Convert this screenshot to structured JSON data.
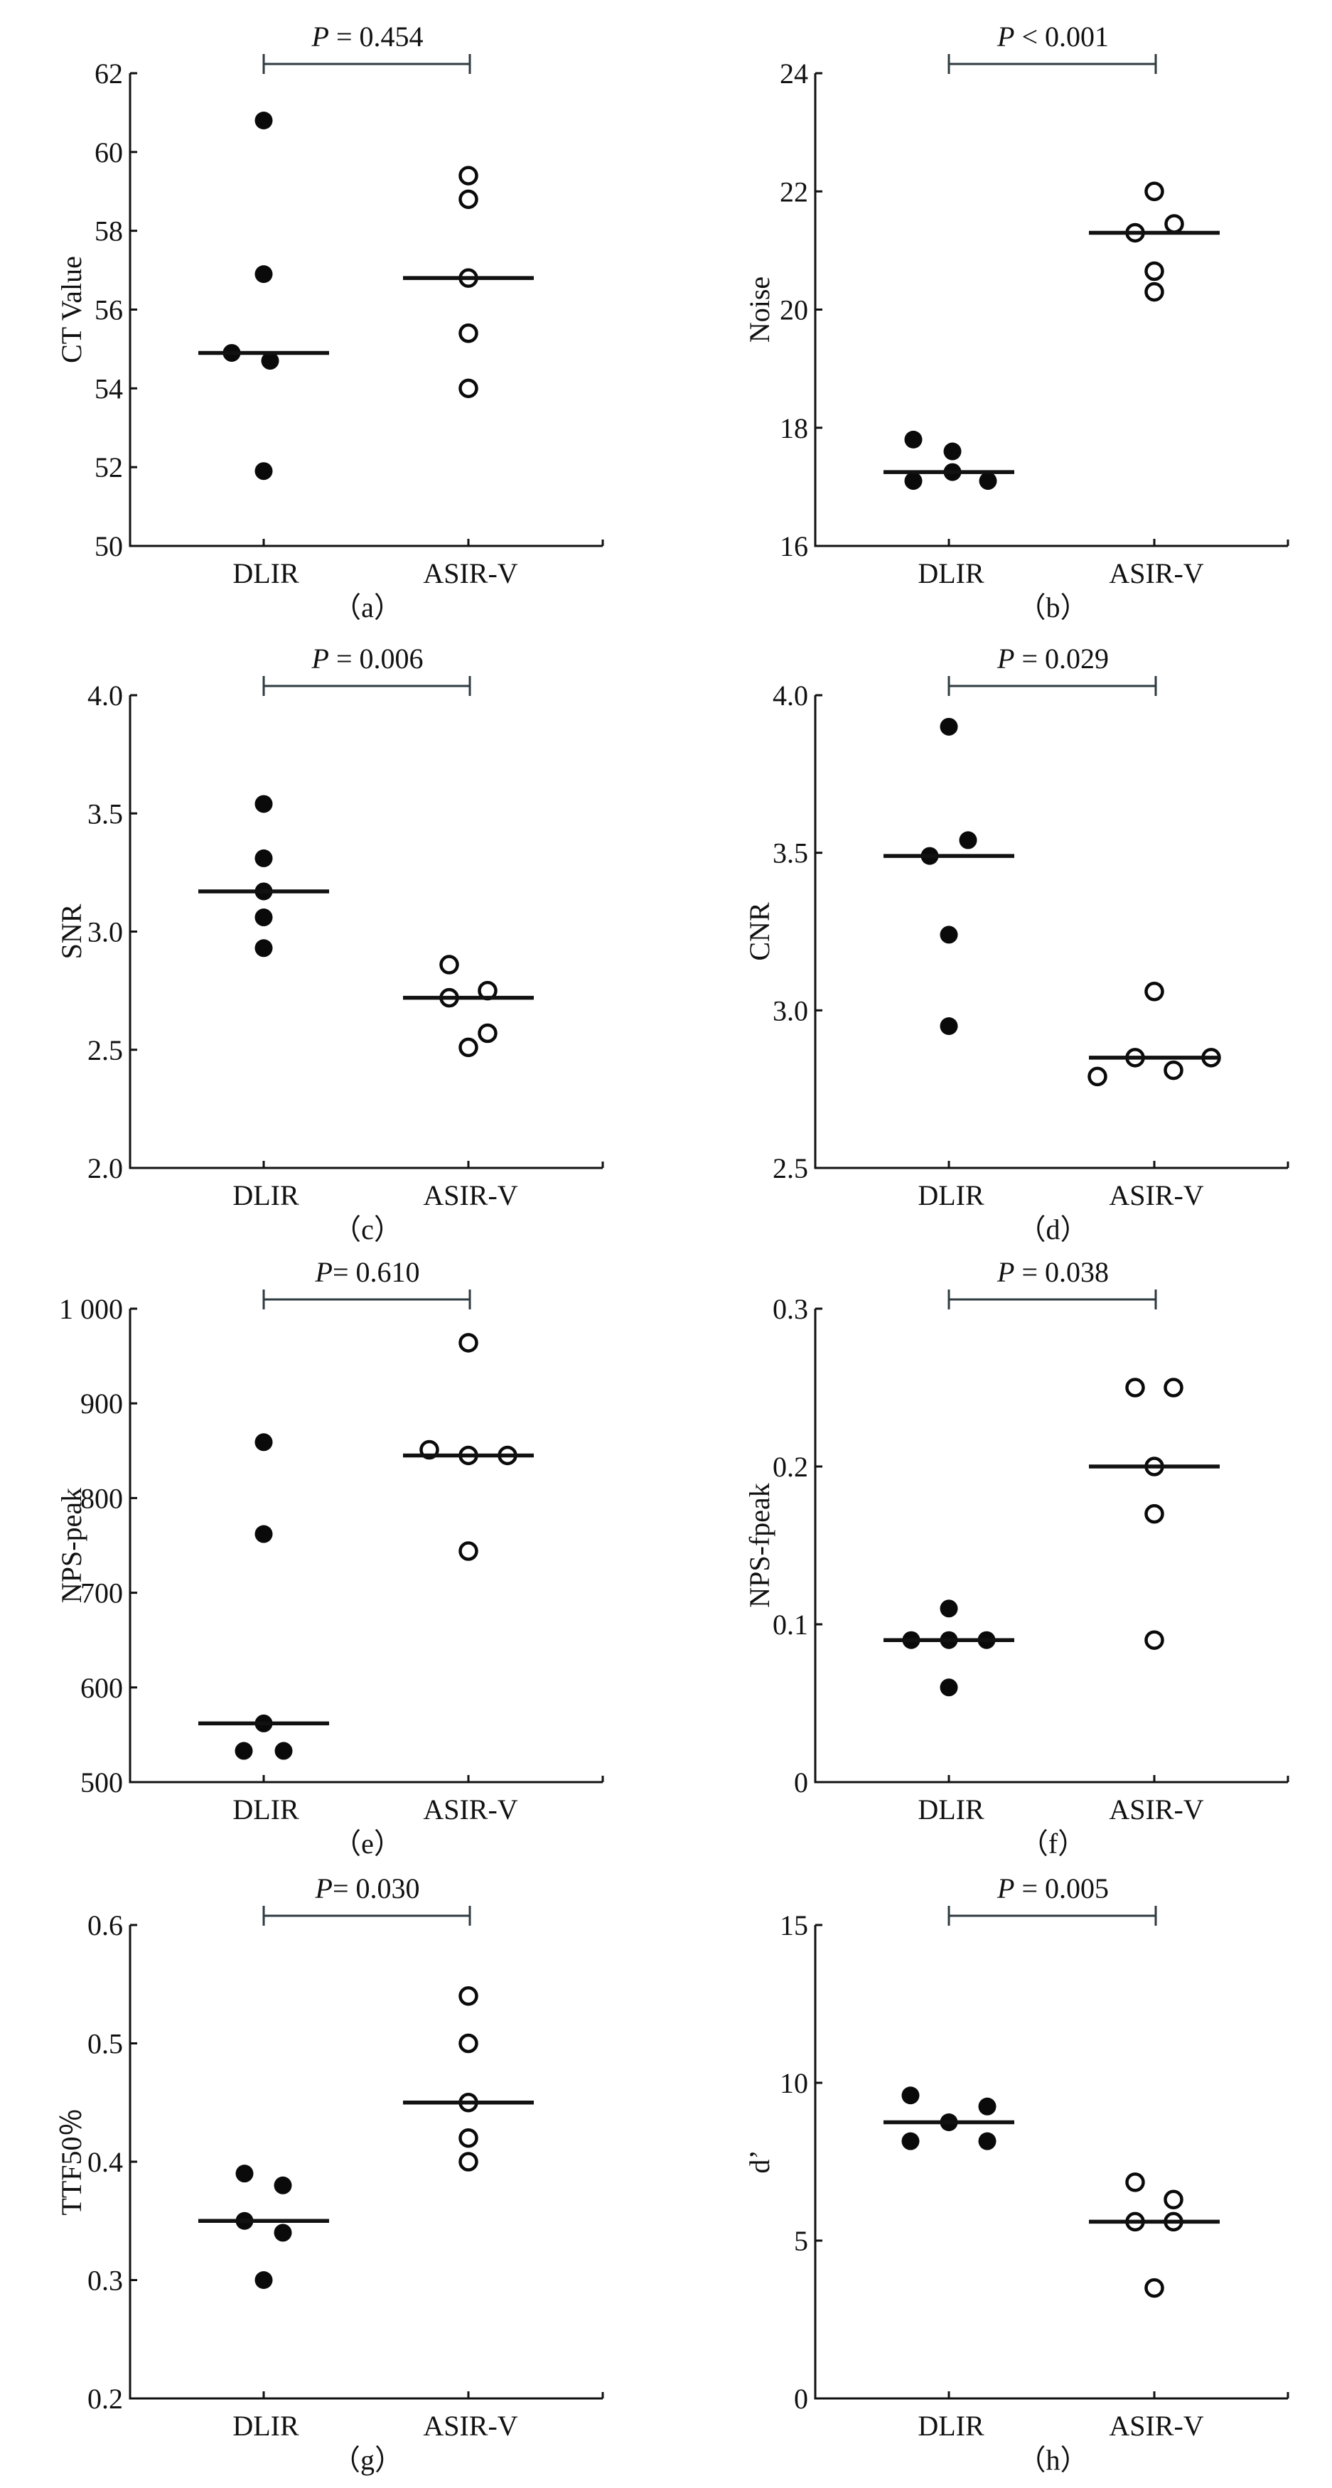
{
  "colors": {
    "axis": "#111111",
    "marker": "#0a0a0a",
    "median": "#111111",
    "bracket": "#2f3b40",
    "background": "#ffffff"
  },
  "chart_data": [
    {
      "type": "scatter",
      "panel": "a",
      "caption": "（a）",
      "ylabel": "CT Value",
      "xlabel": "",
      "categories": [
        "DLIR",
        "ASIR-V"
      ],
      "ylim": [
        50,
        62
      ],
      "yticks": [
        50,
        52,
        54,
        56,
        58,
        60,
        62
      ],
      "ytick_labels": [
        "50",
        "52",
        "54",
        "56",
        "58",
        "60",
        "62"
      ],
      "p_prefix": "P",
      "p_text": " = 0.454",
      "series": [
        {
          "name": "DLIR",
          "marker": "filled",
          "values": [
            60.8,
            56.9,
            54.9,
            54.7,
            51.9
          ],
          "median": 54.9
        },
        {
          "name": "ASIR-V",
          "marker": "open",
          "values": [
            59.4,
            58.8,
            56.8,
            55.4,
            54.0
          ],
          "median": 56.8
        }
      ],
      "grid": false
    },
    {
      "type": "scatter",
      "panel": "b",
      "caption": "（b）",
      "ylabel": "Noise",
      "xlabel": "",
      "categories": [
        "DLIR",
        "ASIR-V"
      ],
      "ylim": [
        16,
        24
      ],
      "yticks": [
        16,
        18,
        20,
        22,
        24
      ],
      "ytick_labels": [
        "16",
        "18",
        "20",
        "22",
        "24"
      ],
      "p_prefix": "P",
      "p_text": " < 0.001",
      "series": [
        {
          "name": "DLIR",
          "marker": "filled",
          "values": [
            17.8,
            17.6,
            17.25,
            17.1,
            17.1
          ],
          "median": 17.25
        },
        {
          "name": "ASIR-V",
          "marker": "open",
          "values": [
            22.0,
            21.45,
            21.3,
            20.65,
            20.3
          ],
          "median": 21.3
        }
      ],
      "grid": false
    },
    {
      "type": "scatter",
      "panel": "c",
      "caption": "（c）",
      "ylabel": "SNR",
      "xlabel": "",
      "categories": [
        "DLIR",
        "ASIR-V"
      ],
      "ylim": [
        2.0,
        4.0
      ],
      "yticks": [
        2.0,
        2.5,
        3.0,
        3.5,
        4.0
      ],
      "ytick_labels": [
        "2.0",
        "2.5",
        "3.0",
        "3.5",
        "4.0"
      ],
      "p_prefix": "P",
      "p_text": " = 0.006",
      "series": [
        {
          "name": "DLIR",
          "marker": "filled",
          "values": [
            3.54,
            3.31,
            3.17,
            3.06,
            2.93
          ],
          "median": 3.17
        },
        {
          "name": "ASIR-V",
          "marker": "open",
          "values": [
            2.86,
            2.75,
            2.72,
            2.57,
            2.51
          ],
          "median": 2.72
        }
      ],
      "grid": false
    },
    {
      "type": "scatter",
      "panel": "d",
      "caption": "（d）",
      "ylabel": "CNR",
      "xlabel": "",
      "categories": [
        "DLIR",
        "ASIR-V"
      ],
      "ylim": [
        2.5,
        4.0
      ],
      "yticks": [
        2.5,
        3.0,
        3.5,
        4.0
      ],
      "ytick_labels": [
        "2.5",
        "3.0",
        "3.5",
        "4.0"
      ],
      "p_prefix": "P",
      "p_text": " = 0.029",
      "series": [
        {
          "name": "DLIR",
          "marker": "filled",
          "values": [
            3.9,
            3.54,
            3.49,
            3.24,
            2.95
          ],
          "median": 3.49
        },
        {
          "name": "ASIR-V",
          "marker": "open",
          "values": [
            3.06,
            2.85,
            2.85,
            2.81,
            2.79
          ],
          "median": 2.85
        }
      ],
      "grid": false
    },
    {
      "type": "scatter",
      "panel": "e",
      "caption": "（e）",
      "ylabel": "NPS-peak",
      "xlabel": "",
      "categories": [
        "DLIR",
        "ASIR-V"
      ],
      "ylim": [
        500,
        1000
      ],
      "yticks": [
        500,
        600,
        700,
        800,
        900,
        1000
      ],
      "ytick_labels": [
        "500",
        "600",
        "700",
        "800",
        "900",
        "1 000"
      ],
      "p_prefix": "P",
      "p_text": "= 0.610",
      "series": [
        {
          "name": "DLIR",
          "marker": "filled",
          "values": [
            859,
            762,
            562,
            533,
            533
          ],
          "median": 562
        },
        {
          "name": "ASIR-V",
          "marker": "open",
          "values": [
            964,
            851,
            845,
            845,
            744
          ],
          "median": 845
        }
      ],
      "grid": false
    },
    {
      "type": "scatter",
      "panel": "f",
      "caption": "（f）",
      "ylabel": "NPS-fpeak",
      "xlabel": "",
      "categories": [
        "DLIR",
        "ASIR-V"
      ],
      "ylim": [
        0,
        0.3
      ],
      "yticks": [
        0,
        0.1,
        0.2,
        0.3
      ],
      "ytick_labels": [
        "0",
        "0.1",
        "0.2",
        "0.3"
      ],
      "p_prefix": "P",
      "p_text": " = 0.038",
      "series": [
        {
          "name": "DLIR",
          "marker": "filled",
          "values": [
            0.11,
            0.09,
            0.09,
            0.09,
            0.06
          ],
          "median": 0.09
        },
        {
          "name": "ASIR-V",
          "marker": "open",
          "values": [
            0.25,
            0.25,
            0.2,
            0.17,
            0.09
          ],
          "median": 0.2
        }
      ],
      "grid": false
    },
    {
      "type": "scatter",
      "panel": "g",
      "caption": "（g）",
      "ylabel": "TTF50％",
      "xlabel": "",
      "categories": [
        "DLIR",
        "ASIR-V"
      ],
      "ylim": [
        0.2,
        0.6
      ],
      "yticks": [
        0.2,
        0.3,
        0.4,
        0.5,
        0.6
      ],
      "ytick_labels": [
        "0.2",
        "0.3",
        "0.4",
        "0.5",
        "0.6"
      ],
      "p_prefix": "P",
      "p_text": "= 0.030",
      "series": [
        {
          "name": "DLIR",
          "marker": "filled",
          "values": [
            0.39,
            0.38,
            0.35,
            0.34,
            0.3
          ],
          "median": 0.35
        },
        {
          "name": "ASIR-V",
          "marker": "open",
          "values": [
            0.54,
            0.5,
            0.45,
            0.42,
            0.4
          ],
          "median": 0.45
        }
      ],
      "grid": false
    },
    {
      "type": "scatter",
      "panel": "h",
      "caption": "（h）",
      "ylabel": "d’",
      "xlabel": "",
      "categories": [
        "DLIR",
        "ASIR-V"
      ],
      "ylim": [
        0,
        15
      ],
      "yticks": [
        0,
        5,
        10,
        15
      ],
      "ytick_labels": [
        "0",
        "5",
        "10",
        "15"
      ],
      "p_prefix": "P",
      "p_text": " = 0.005",
      "series": [
        {
          "name": "DLIR",
          "marker": "filled",
          "values": [
            9.6,
            9.25,
            8.75,
            8.15,
            8.15
          ],
          "median": 8.75
        },
        {
          "name": "ASIR-V",
          "marker": "open",
          "values": [
            6.85,
            6.3,
            5.6,
            5.6,
            3.5
          ],
          "median": 5.6
        }
      ],
      "grid": false
    }
  ]
}
